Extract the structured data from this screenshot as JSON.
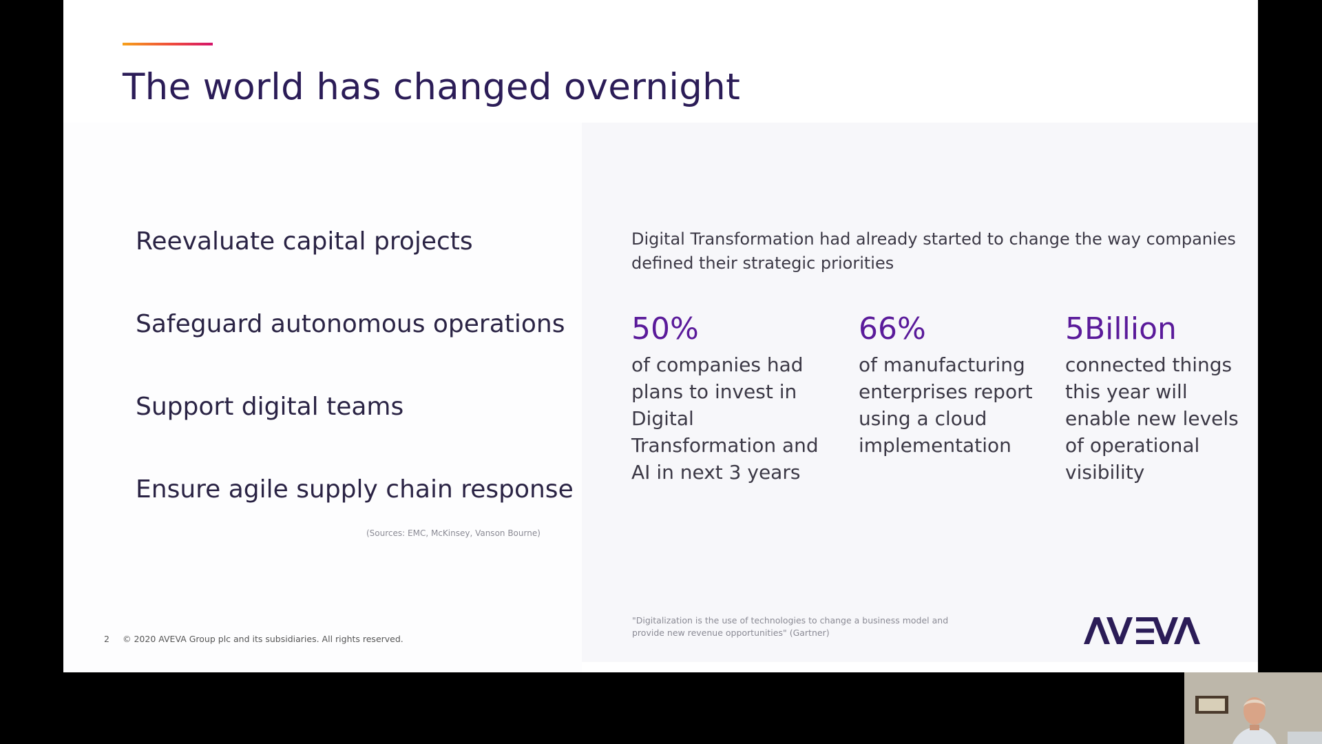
{
  "slide": {
    "title": "The world has changed overnight",
    "priorities": [
      "Reevaluate capital projects",
      "Safeguard autonomous operations",
      "Support digital teams",
      "Ensure agile supply chain response"
    ],
    "sources_note": "(Sources: EMC, McKinsey, Vanson Bourne)",
    "intro": "Digital Transformation had already started to change the way companies defined their strategic priorities",
    "stats": [
      {
        "value": "50%",
        "description": "of companies had plans to invest in Digital Transformation and AI in next 3 years"
      },
      {
        "value": "66%",
        "description": "of manufacturing enterprises report using a cloud implementation"
      },
      {
        "value": "5Billion",
        "description": "connected things this year will enable new levels of operational visibility"
      }
    ],
    "quote": "\"Digitalization is the use of technologies to change a business model and provide new revenue opportunities\"  (Gartner)",
    "footer": {
      "page_number": "2",
      "copyright": "© 2020 AVEVA Group plc and its subsidiaries. All rights reserved."
    },
    "logo_text": "AVEVA"
  },
  "colors": {
    "title": "#2b1c57",
    "stat_accent": "#5a1a9a",
    "logo": "#2b1c57",
    "body_text": "#3b3845"
  }
}
